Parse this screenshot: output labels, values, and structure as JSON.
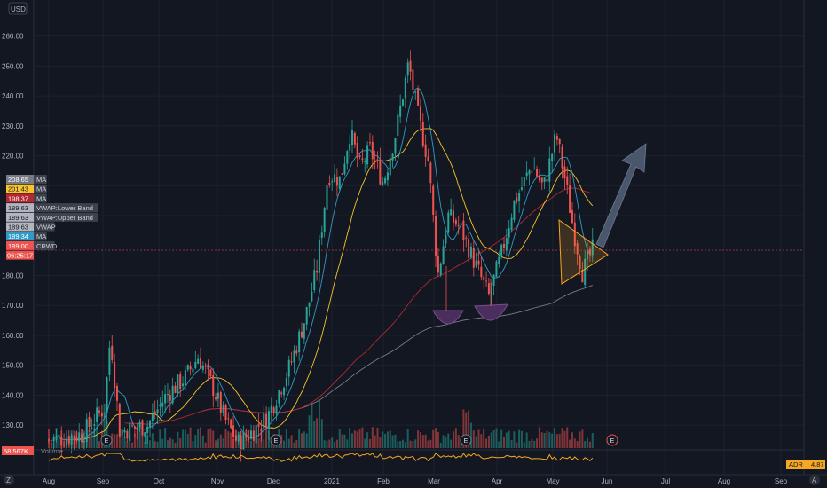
{
  "header": {
    "currency_label": "USD"
  },
  "chart_data": {
    "type": "candlestick",
    "symbol": "CRWD",
    "ylim": [
      123,
      265
    ],
    "y_ticks": [
      130,
      140,
      150,
      160,
      170,
      180,
      220,
      230,
      240,
      250,
      260
    ],
    "x_ticks": [
      "Aug",
      "Sep",
      "Oct",
      "Nov",
      "Dec",
      "2021",
      "Feb",
      "Mar",
      "Apr",
      "May",
      "Jun",
      "Jul",
      "Aug",
      "Sep"
    ],
    "grid": true,
    "price_path": [
      [
        "2020-08-01",
        125
      ],
      [
        "2020-08-20",
        127
      ],
      [
        "2020-09-02",
        136
      ],
      [
        "2020-09-05",
        160
      ],
      [
        "2020-09-10",
        128
      ],
      [
        "2020-09-25",
        130
      ],
      [
        "2020-10-05",
        140
      ],
      [
        "2020-10-15",
        146
      ],
      [
        "2020-10-22",
        153
      ],
      [
        "2020-10-30",
        142
      ],
      [
        "2020-11-05",
        132
      ],
      [
        "2020-11-12",
        124
      ],
      [
        "2020-11-20",
        128
      ],
      [
        "2020-11-28",
        133
      ],
      [
        "2020-12-03",
        140
      ],
      [
        "2020-12-10",
        150
      ],
      [
        "2020-12-18",
        166
      ],
      [
        "2020-12-24",
        182
      ],
      [
        "2020-12-30",
        214
      ],
      [
        "2021-01-06",
        212
      ],
      [
        "2021-01-12",
        228
      ],
      [
        "2021-01-18",
        216
      ],
      [
        "2021-01-24",
        222
      ],
      [
        "2021-02-01",
        211
      ],
      [
        "2021-02-08",
        228
      ],
      [
        "2021-02-15",
        251
      ],
      [
        "2021-02-20",
        234
      ],
      [
        "2021-02-26",
        218
      ],
      [
        "2021-03-03",
        180
      ],
      [
        "2021-03-08",
        200
      ],
      [
        "2021-03-14",
        196
      ],
      [
        "2021-03-20",
        186
      ],
      [
        "2021-03-28",
        173
      ],
      [
        "2021-04-03",
        186
      ],
      [
        "2021-04-10",
        204
      ],
      [
        "2021-04-20",
        217
      ],
      [
        "2021-04-26",
        209
      ],
      [
        "2021-05-03",
        227
      ],
      [
        "2021-05-08",
        212
      ],
      [
        "2021-05-13",
        195
      ],
      [
        "2021-05-18",
        181
      ],
      [
        "2021-05-24",
        189
      ]
    ],
    "price_labels": [
      {
        "value": "208.65",
        "text": "MA",
        "color": "#787b86"
      },
      {
        "value": "201.43",
        "text": "MA",
        "color": "#f7c52b"
      },
      {
        "value": "198.37",
        "text": "MA",
        "color": "#b22833"
      },
      {
        "value": "189.63",
        "text": "VWAP:Lower Band",
        "color": "#b2b5be"
      },
      {
        "value": "189.63",
        "text": "VWAP:Upper Band",
        "color": "#b2b5be"
      },
      {
        "value": "189.63",
        "text": "VWAP",
        "color": "#b2b5be"
      },
      {
        "value": "189.34",
        "text": "MA",
        "color": "#2f9ac5"
      },
      {
        "value": "189.00",
        "text": "CRWD",
        "color": "#ef5350"
      }
    ],
    "last_price": 189.0,
    "countdown": "06:25:17",
    "earnings_markers": [
      "E",
      "E",
      "E",
      "E"
    ],
    "indicator": {
      "name": "ADR",
      "value": "4.87",
      "left_label": "58.567K",
      "left_suffix": "Volume"
    },
    "pane_buttons": [
      "Z",
      "A"
    ],
    "colors": {
      "up": "#26a69a",
      "down": "#ef5350",
      "ma_short": "#2f9ac5",
      "ma_mid": "#f7c52b",
      "ma_long": "#b22833",
      "ma_longest": "#787b86",
      "pattern": "#f5a623",
      "cup": "#7b4d8f",
      "arrow": "#5d6b84"
    }
  }
}
